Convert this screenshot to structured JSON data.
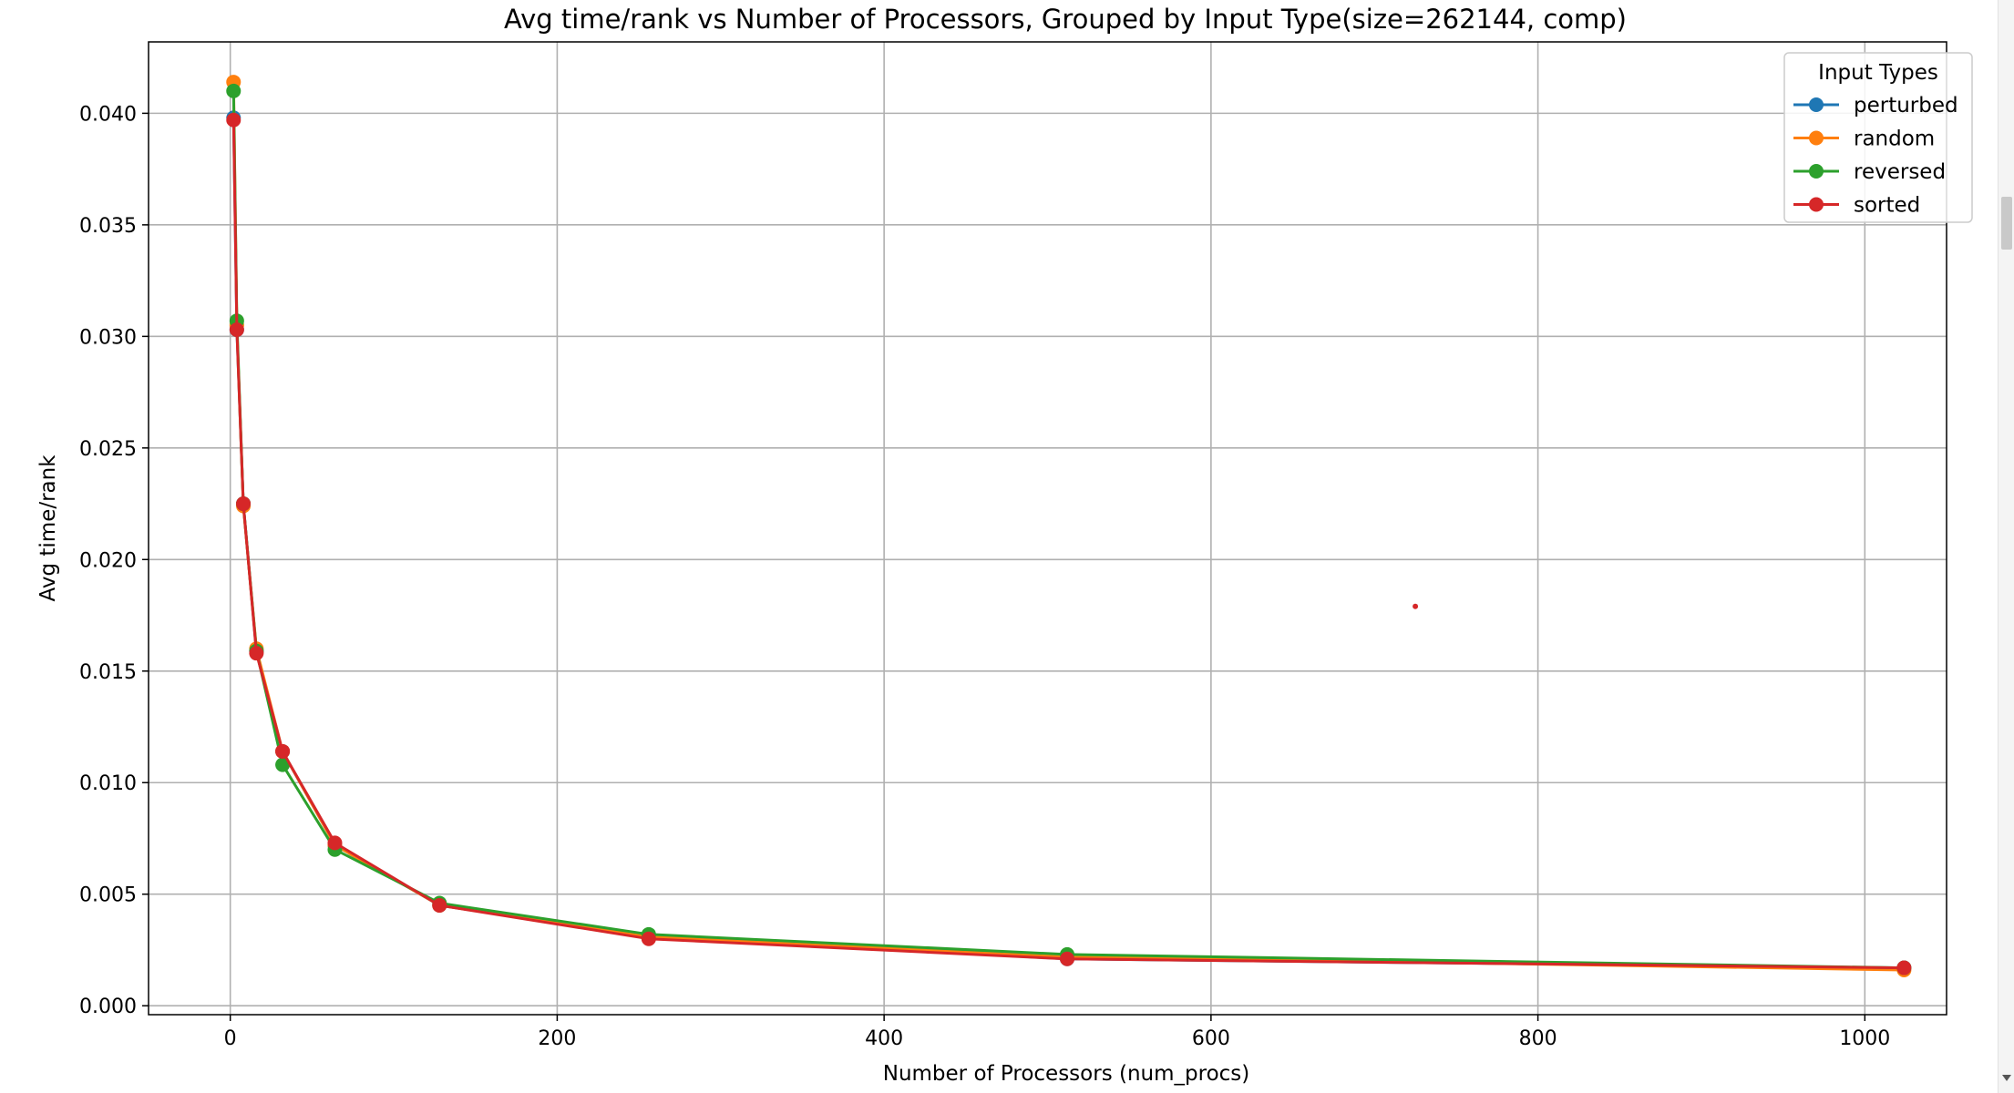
{
  "chart_data": {
    "type": "line",
    "title": "Avg time/rank vs Number of Processors, Grouped by Input Type(size=262144, comp)",
    "xlabel": "Number of Processors (num_procs)",
    "ylabel": "Avg time/rank",
    "xlim": [
      -50,
      1050
    ],
    "ylim": [
      -0.0004,
      0.0432
    ],
    "xticks": [
      0,
      200,
      400,
      600,
      800,
      1000
    ],
    "xtick_labels": [
      "0",
      "200",
      "400",
      "600",
      "800",
      "1000"
    ],
    "yticks": [
      0.0,
      0.005,
      0.01,
      0.015,
      0.02,
      0.025,
      0.03,
      0.035,
      0.04
    ],
    "ytick_labels": [
      "0.000",
      "0.005",
      "0.010",
      "0.015",
      "0.020",
      "0.025",
      "0.030",
      "0.035",
      "0.040"
    ],
    "grid": true,
    "legend": {
      "title": "Input Types",
      "placement": "top-right"
    },
    "x": [
      2,
      4,
      8,
      16,
      32,
      64,
      128,
      256,
      512,
      1024
    ],
    "series": [
      {
        "name": "perturbed",
        "color": "#1f77b4",
        "values": [
          0.0398,
          0.0303,
          0.0225,
          0.0159,
          0.0114,
          0.0072,
          0.0045,
          0.0031,
          0.0021,
          0.0017
        ]
      },
      {
        "name": "random",
        "color": "#ff7f0e",
        "values": [
          0.0414,
          0.0305,
          0.0224,
          0.016,
          0.0114,
          0.0072,
          0.0045,
          0.0031,
          0.0022,
          0.0016
        ]
      },
      {
        "name": "reversed",
        "color": "#2ca02c",
        "values": [
          0.041,
          0.0307,
          0.0225,
          0.0159,
          0.0108,
          0.007,
          0.0046,
          0.0032,
          0.0023,
          0.0017
        ]
      },
      {
        "name": "sorted",
        "color": "#d62728",
        "values": [
          0.0397,
          0.0303,
          0.0225,
          0.0158,
          0.0114,
          0.0073,
          0.0045,
          0.003,
          0.0021,
          0.0017
        ]
      }
    ],
    "annotations": [
      {
        "x": 725,
        "y": 0.0179,
        "color": "#d62728",
        "marker": "dot"
      }
    ]
  }
}
